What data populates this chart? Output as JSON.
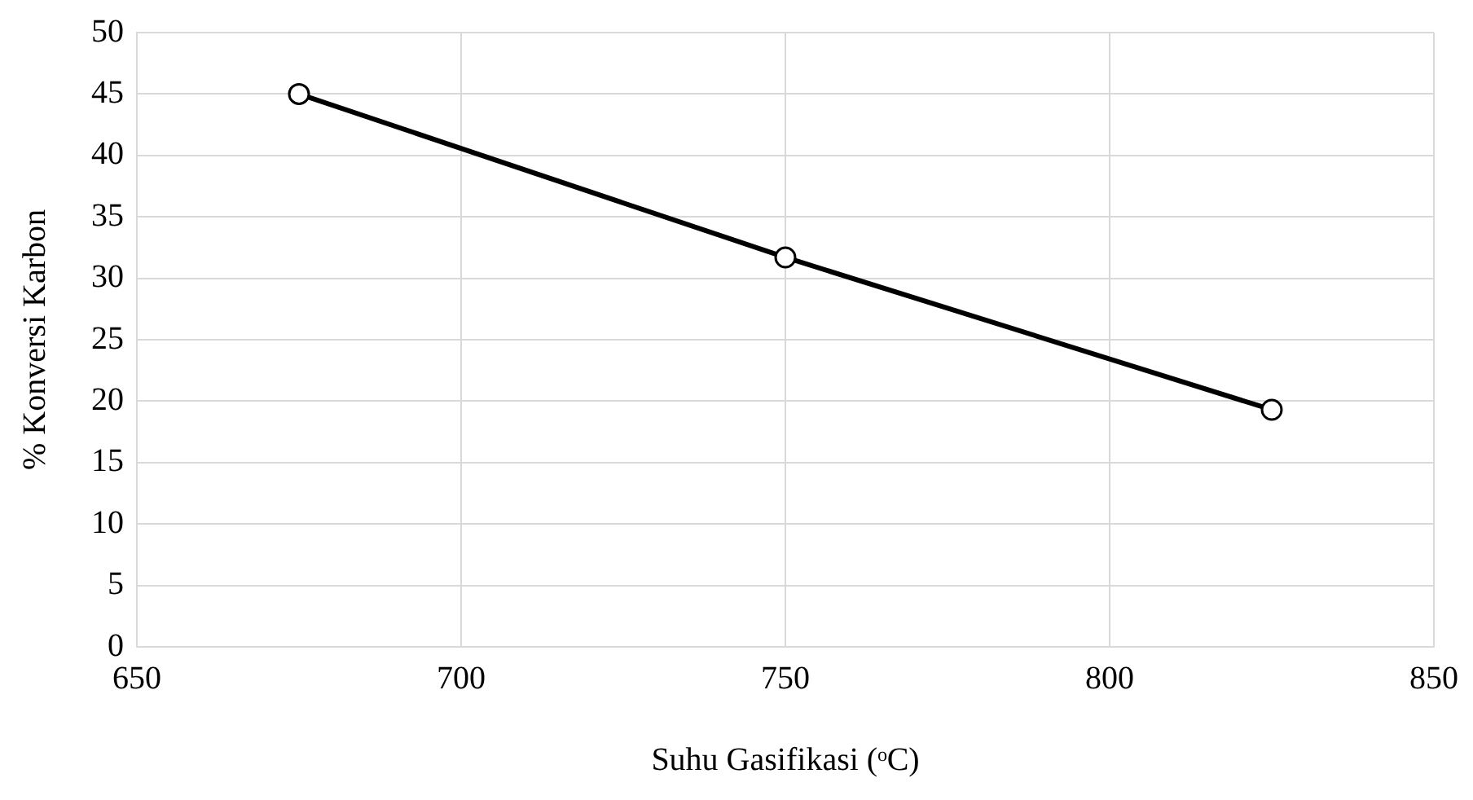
{
  "chart_data": {
    "type": "line",
    "xlabel": "Suhu Gasifikasi (ᵒC)",
    "ylabel": "% Konversi Karbon",
    "x": [
      675,
      750,
      825
    ],
    "series": [
      {
        "color": "#000000",
        "values": [
          45,
          31.7,
          19.3
        ]
      }
    ],
    "xlim": [
      650,
      850
    ],
    "xticks": [
      650,
      700,
      750,
      800,
      850
    ],
    "ylim": [
      0,
      50
    ],
    "yticks": [
      0,
      5,
      10,
      15,
      20,
      25,
      30,
      35,
      40,
      45,
      50
    ],
    "grid": true,
    "legend": false,
    "marker": "circle",
    "line_style": "solid"
  }
}
